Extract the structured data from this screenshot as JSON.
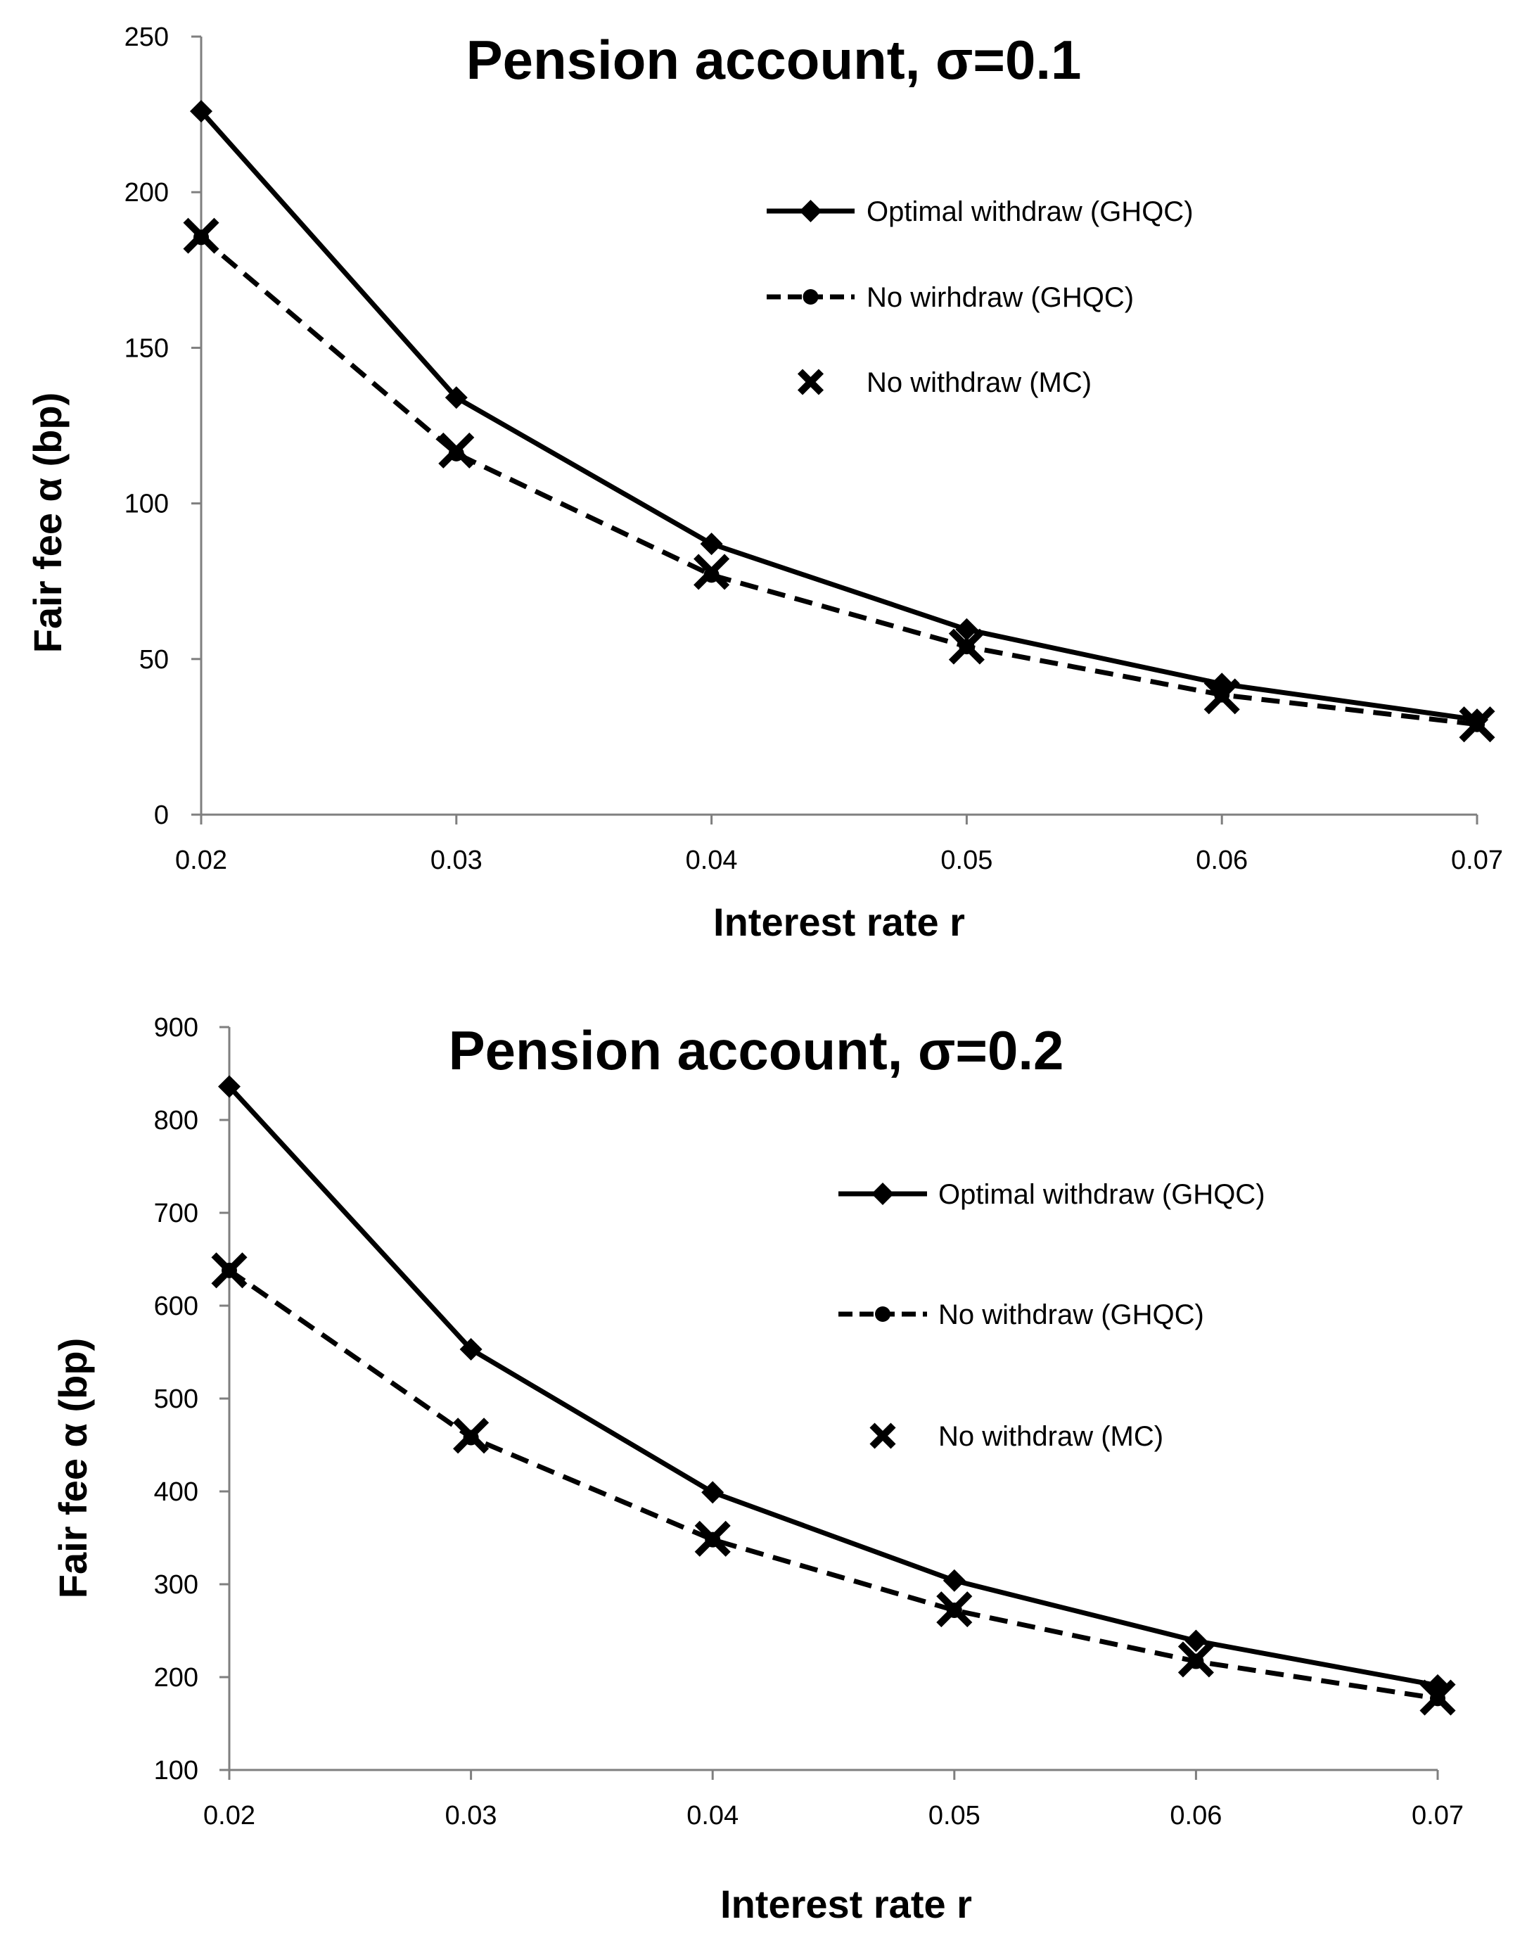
{
  "chart_data": [
    {
      "type": "line",
      "title": "Pension account, σ=0.1",
      "xlabel": "Interest rate r",
      "ylabel": "Fair fee α (bp)",
      "x": [
        "0.02",
        "0.03",
        "0.04",
        "0.05",
        "0.06",
        "0.07"
      ],
      "ylim": [
        0,
        250
      ],
      "yticks": [
        "0",
        "50",
        "100",
        "150",
        "200",
        "250"
      ],
      "legend_position": "top-right",
      "series": [
        {
          "name": "Optimal withdraw (GHQC)",
          "style": "solid-diamond",
          "values": [
            226,
            134,
            87,
            59.5,
            42,
            30.5
          ]
        },
        {
          "name": "No wirhdraw (GHQC)",
          "style": "dashed-circle",
          "values": [
            185.5,
            116,
            77,
            54,
            38.5,
            29
          ]
        },
        {
          "name": "No withdraw (MC)",
          "style": "x-marker",
          "values": [
            186,
            117,
            78,
            54,
            38,
            29
          ]
        }
      ]
    },
    {
      "type": "line",
      "title": "Pension account, σ=0.2",
      "xlabel": "Interest rate r",
      "ylabel": "Fair fee α (bp)",
      "x": [
        "0.02",
        "0.03",
        "0.04",
        "0.05",
        "0.06",
        "0.07"
      ],
      "ylim": [
        100,
        900
      ],
      "yticks": [
        "100",
        "200",
        "300",
        "400",
        "500",
        "600",
        "700",
        "800",
        "900"
      ],
      "legend_position": "right",
      "series": [
        {
          "name": "Optimal withdraw (GHQC)",
          "style": "solid-diamond",
          "values": [
            836,
            553,
            399,
            304,
            239,
            191
          ]
        },
        {
          "name": "No withdraw (GHQC)",
          "style": "dashed-circle",
          "values": [
            638,
            458,
            348,
            272,
            217,
            177
          ]
        },
        {
          "name": "No withdraw (MC)",
          "style": "x-marker",
          "values": [
            638,
            460,
            349,
            273,
            219,
            178
          ]
        }
      ]
    }
  ]
}
